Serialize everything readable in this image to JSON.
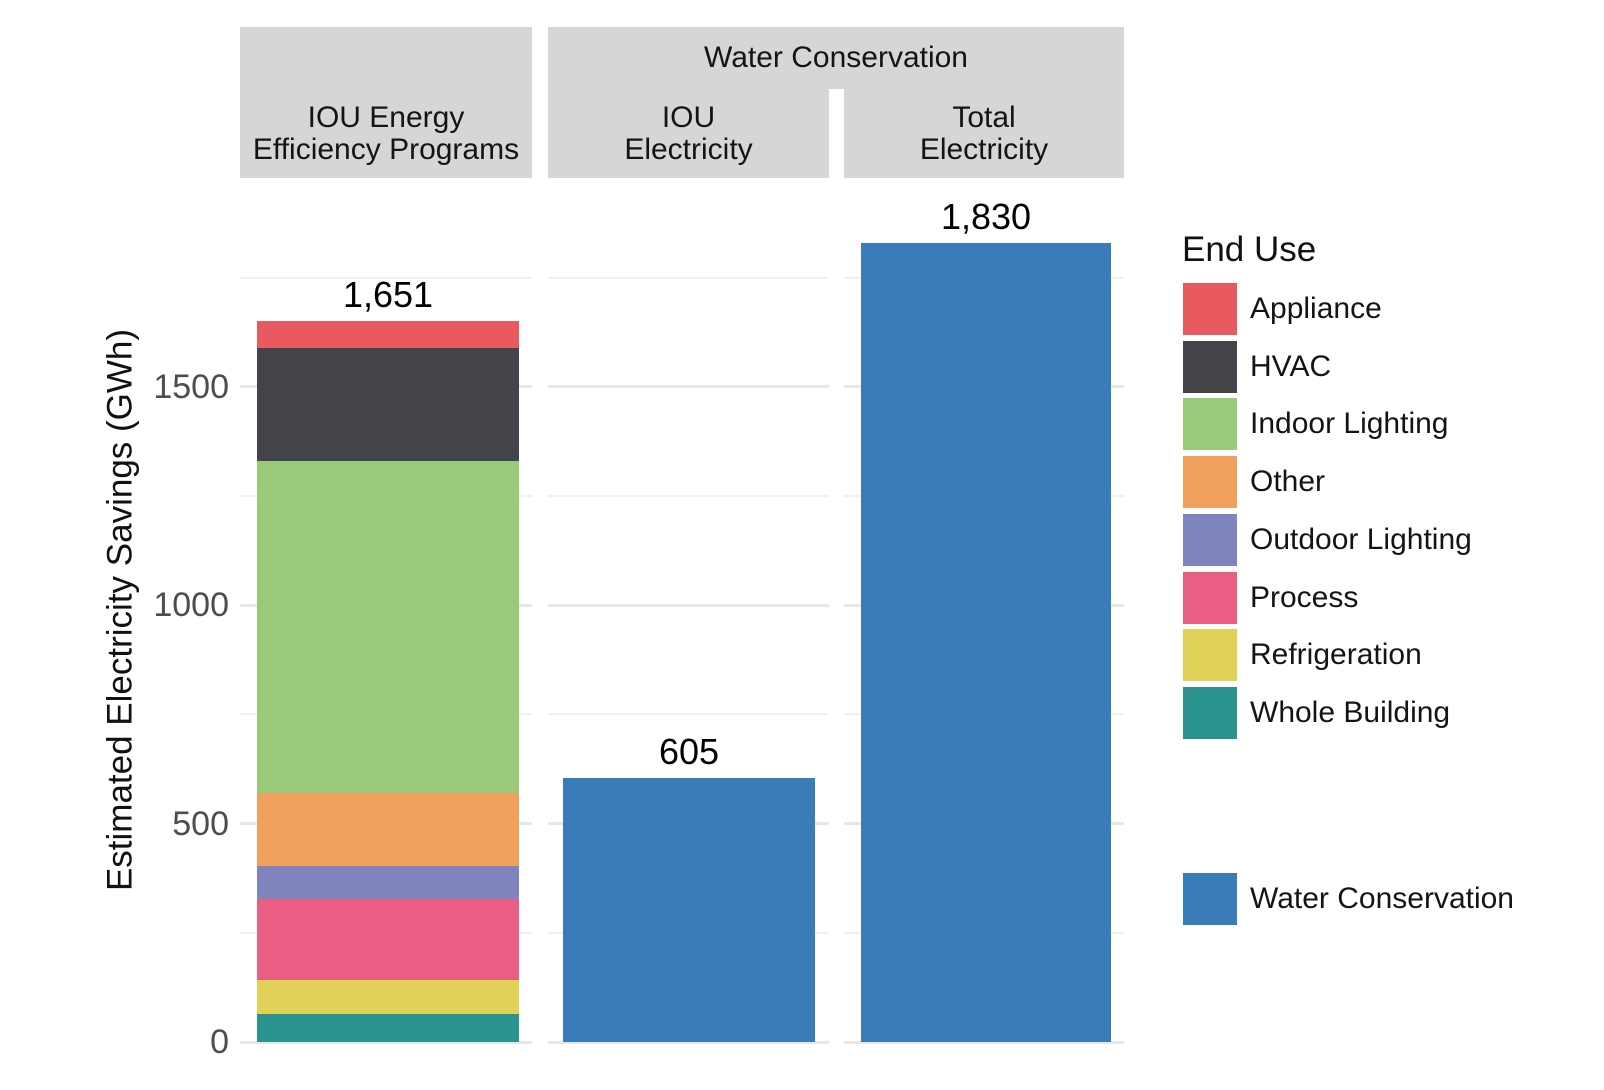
{
  "chart_data": {
    "type": "bar",
    "subtype": "stacked-bar-faceted",
    "title": "",
    "xlabel": "",
    "ylabel": "Estimated Electricity Savings (GWh)",
    "ylim": [
      0,
      1975
    ],
    "grid": "on",
    "legend_position": "right",
    "y_ticks": [
      {
        "value": 0,
        "label": "0"
      },
      {
        "value": 500,
        "label": "500"
      },
      {
        "value": 1000,
        "label": "1000"
      },
      {
        "value": 1500,
        "label": "1500"
      }
    ],
    "facets": {
      "left_strip_lines": [
        "IOU Energy",
        "Efficiency Programs"
      ],
      "group_strip_label": "Water Conservation",
      "sub_strips": [
        {
          "lines": [
            "IOU",
            "Electricity"
          ]
        },
        {
          "lines": [
            "Total",
            "Electricity"
          ]
        }
      ]
    },
    "bars": [
      {
        "panel": 0,
        "facet": "IOU Energy Efficiency Programs",
        "total": 1651,
        "total_label": "1,651",
        "segments": [
          {
            "end_use": "Whole Building",
            "value": 63
          },
          {
            "end_use": "Refrigeration",
            "value": 80
          },
          {
            "end_use": "Process",
            "value": 184
          },
          {
            "end_use": "Outdoor Lighting",
            "value": 77
          },
          {
            "end_use": "Other",
            "value": 166
          },
          {
            "end_use": "Indoor Lighting",
            "value": 761
          },
          {
            "end_use": "HVAC",
            "value": 258
          },
          {
            "end_use": "Appliance",
            "value": 62
          }
        ]
      },
      {
        "panel": 1,
        "facet": "Water Conservation / IOU Electricity",
        "total": 605,
        "total_label": "605",
        "segments": [
          {
            "end_use": "Water Conservation",
            "value": 605
          }
        ]
      },
      {
        "panel": 2,
        "facet": "Water Conservation / Total Electricity",
        "total": 1830,
        "total_label": "1,830",
        "segments": [
          {
            "end_use": "Water Conservation",
            "value": 1830
          }
        ]
      }
    ],
    "legend": {
      "title": "End Use",
      "items": [
        {
          "label": "Appliance",
          "color": "#e95a5e"
        },
        {
          "label": "HVAC",
          "color": "#42444a"
        },
        {
          "label": "Indoor Lighting",
          "color": "#98ca79"
        },
        {
          "label": "Other",
          "color": "#f2a05d"
        },
        {
          "label": "Outdoor Lighting",
          "color": "#7f84bc"
        },
        {
          "label": "Process",
          "color": "#ea5e83"
        },
        {
          "label": "Refrigeration",
          "color": "#e0d258"
        },
        {
          "label": "Whole Building",
          "color": "#2b938e"
        }
      ],
      "separate_items": [
        {
          "label": "Water Conservation",
          "color": "#3a7cb8"
        }
      ]
    }
  }
}
